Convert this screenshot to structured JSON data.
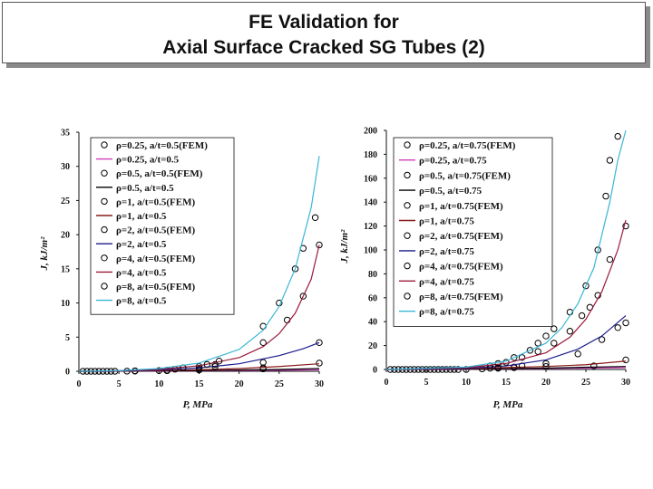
{
  "title": {
    "line1": "FE Validation for",
    "line2": "Axial Surface Cracked SG Tubes (2)"
  },
  "chart_data": [
    {
      "type": "line",
      "xlabel": "P, MPa",
      "ylabel": "J, kJ/m²",
      "xlim": [
        0,
        30
      ],
      "ylim": [
        0,
        35
      ],
      "xticks": [
        0,
        5,
        10,
        15,
        20,
        25,
        30
      ],
      "yticks": [
        0,
        5,
        10,
        15,
        20,
        25,
        30,
        35
      ],
      "grid": false,
      "legend_position": "top-left",
      "series": [
        {
          "name": "ρ=0.25, a/t=0.5(FEM)",
          "kind": "markers",
          "color": "#000000",
          "x": [
            7,
            11,
            15
          ],
          "y": [
            0.05,
            0.1,
            0.2
          ]
        },
        {
          "name": "ρ=0.25, a/t=0.5",
          "kind": "line",
          "color": "#d03ab8",
          "x": [
            0,
            5,
            10,
            15,
            20,
            25,
            30
          ],
          "y": [
            0,
            0.01,
            0.03,
            0.06,
            0.1,
            0.15,
            0.22
          ]
        },
        {
          "name": "ρ=0.5, a/t=0.5(FEM)",
          "kind": "markers",
          "color": "#000000",
          "x": [
            7,
            11,
            15,
            23
          ],
          "y": [
            0.05,
            0.1,
            0.2,
            0.35
          ]
        },
        {
          "name": "ρ=0.5, a/t=0.5",
          "kind": "line",
          "color": "#000000",
          "x": [
            0,
            5,
            10,
            15,
            20,
            25,
            30
          ],
          "y": [
            0,
            0.02,
            0.05,
            0.1,
            0.18,
            0.27,
            0.4
          ]
        },
        {
          "name": "ρ=1, a/t=0.5(FEM)",
          "kind": "markers",
          "color": "#000000",
          "x": [
            0.5,
            1,
            1.5,
            2,
            2.5,
            3,
            3.5,
            4,
            4.5,
            6,
            7,
            10,
            11,
            15,
            23,
            30
          ],
          "y": [
            0,
            0,
            0,
            0,
            0,
            0,
            0,
            0,
            0,
            0.02,
            0.05,
            0.1,
            0.12,
            0.25,
            0.5,
            1.2
          ]
        },
        {
          "name": "ρ=1, a/t=0.5",
          "kind": "line",
          "color": "#8b1a1a",
          "x": [
            0,
            5,
            10,
            15,
            20,
            25,
            30
          ],
          "y": [
            0,
            0.03,
            0.1,
            0.22,
            0.4,
            0.7,
            1.1
          ]
        },
        {
          "name": "ρ=2, a/t=0.5(FEM)",
          "kind": "markers",
          "color": "#000000",
          "x": [
            11,
            15,
            17,
            23,
            30
          ],
          "y": [
            0.15,
            0.45,
            0.7,
            1.3,
            4.2
          ]
        },
        {
          "name": "ρ=2, a/t=0.5",
          "kind": "line",
          "color": "#1a1a8b",
          "x": [
            0,
            5,
            10,
            15,
            20,
            25,
            28,
            30
          ],
          "y": [
            0,
            0.05,
            0.2,
            0.5,
            1.1,
            2.3,
            3.3,
            4.2
          ]
        },
        {
          "name": "ρ=4, a/t=0.5(FEM)",
          "kind": "markers",
          "color": "#000000",
          "x": [
            12,
            15,
            17,
            23,
            26,
            28,
            30
          ],
          "y": [
            0.3,
            0.7,
            1.0,
            4.2,
            7.5,
            11,
            18.5
          ]
        },
        {
          "name": "ρ=4, a/t=0.5",
          "kind": "line",
          "color": "#9a1a3a",
          "x": [
            0,
            5,
            10,
            15,
            20,
            23,
            25,
            27,
            29,
            30
          ],
          "y": [
            0,
            0.1,
            0.3,
            0.8,
            2.0,
            3.6,
            5.5,
            8.5,
            13.5,
            18.5
          ]
        },
        {
          "name": "ρ=8, a/t=0.5(FEM)",
          "kind": "markers",
          "color": "#000000",
          "x": [
            13,
            16,
            17.5,
            23,
            25,
            27,
            28,
            29.5
          ],
          "y": [
            0.5,
            1.0,
            1.5,
            6.6,
            10,
            15,
            18,
            22.5
          ]
        },
        {
          "name": "ρ=8, a/t=0.5",
          "kind": "line",
          "color": "#3ab6d6",
          "x": [
            0,
            5,
            10,
            15,
            20,
            23,
            25,
            27,
            29,
            30
          ],
          "y": [
            0,
            0.1,
            0.4,
            1.2,
            3.2,
            6.0,
            9.5,
            15,
            24,
            31.5
          ]
        }
      ]
    },
    {
      "type": "line",
      "xlabel": "P, MPa",
      "ylabel": "J, kJ/m²",
      "xlim": [
        0,
        30
      ],
      "ylim": [
        0,
        200
      ],
      "xticks": [
        0,
        5,
        10,
        15,
        20,
        25,
        30
      ],
      "yticks": [
        0,
        20,
        40,
        60,
        80,
        100,
        120,
        140,
        160,
        180,
        200
      ],
      "grid": false,
      "legend_position": "top-left",
      "series": [
        {
          "name": "ρ=0.25, a/t=0.75(FEM)",
          "kind": "markers",
          "color": "#000000",
          "x": [
            0.5,
            1,
            1.5,
            2,
            2.5,
            3,
            3.5,
            4,
            4.5,
            5,
            5.5,
            6,
            6.5,
            7,
            7.5,
            8,
            8.5,
            9,
            10
          ],
          "y": [
            0,
            0,
            0,
            0,
            0,
            0,
            0,
            0,
            0,
            0,
            0,
            0,
            0,
            0,
            0,
            0,
            0,
            0,
            0
          ]
        },
        {
          "name": "ρ=0.25, a/t=0.75",
          "kind": "line",
          "color": "#d03ab8",
          "x": [
            0,
            10,
            20,
            30
          ],
          "y": [
            0,
            0.3,
            0.8,
            1.5
          ]
        },
        {
          "name": "ρ=0.5, a/t=0.75(FEM)",
          "kind": "markers",
          "color": "#000000",
          "x": [
            12,
            14,
            16
          ],
          "y": [
            0.5,
            1.0,
            1.5
          ]
        },
        {
          "name": "ρ=0.5, a/t=0.75",
          "kind": "line",
          "color": "#000000",
          "x": [
            0,
            10,
            20,
            30
          ],
          "y": [
            0,
            0.5,
            1.2,
            2.5
          ]
        },
        {
          "name": "ρ=1, a/t=0.75(FEM)",
          "kind": "markers",
          "color": "#000000",
          "x": [
            13,
            16,
            20,
            26,
            30
          ],
          "y": [
            1.0,
            2.0,
            2.5,
            3.0,
            8.0
          ]
        },
        {
          "name": "ρ=1, a/t=0.75",
          "kind": "line",
          "color": "#8b1a1a",
          "x": [
            0,
            10,
            20,
            25,
            30
          ],
          "y": [
            0,
            0.8,
            2.5,
            4.0,
            7.0
          ]
        },
        {
          "name": "ρ=2, a/t=0.75(FEM)",
          "kind": "markers",
          "color": "#000000",
          "x": [
            14,
            17,
            20,
            24,
            27,
            29,
            30
          ],
          "y": [
            1.5,
            3.0,
            5.0,
            13,
            25,
            35,
            39
          ]
        },
        {
          "name": "ρ=2, a/t=0.75",
          "kind": "line",
          "color": "#1a1a8b",
          "x": [
            0,
            10,
            15,
            20,
            24,
            27,
            30
          ],
          "y": [
            0,
            1.0,
            3.0,
            8.0,
            17,
            28,
            45
          ]
        },
        {
          "name": "ρ=4, a/t=0.75(FEM)",
          "kind": "markers",
          "color": "#000000",
          "x": [
            13,
            15,
            17,
            19,
            21,
            23,
            24.5,
            25.5,
            26.5,
            28,
            30
          ],
          "y": [
            3,
            6,
            10,
            15,
            22,
            32,
            45,
            52,
            62,
            92,
            120
          ]
        },
        {
          "name": "ρ=4, a/t=0.75",
          "kind": "line",
          "color": "#9a1a3a",
          "x": [
            0,
            10,
            15,
            20,
            23,
            25,
            27,
            29,
            30
          ],
          "y": [
            0,
            1.5,
            5,
            14,
            27,
            42,
            65,
            100,
            125
          ]
        },
        {
          "name": "ρ=8, a/t=0.75(FEM)",
          "kind": "markers",
          "color": "#000000",
          "x": [
            14,
            16,
            18,
            19,
            20,
            21,
            23,
            25,
            26.5,
            27.5,
            28,
            29
          ],
          "y": [
            5,
            10,
            16,
            22,
            28,
            34,
            48,
            70,
            100,
            145,
            175,
            195
          ]
        },
        {
          "name": "ρ=8, a/t=0.75",
          "kind": "line",
          "color": "#3ab6d6",
          "x": [
            0,
            10,
            15,
            20,
            22,
            24,
            26,
            28,
            29,
            30
          ],
          "y": [
            0,
            2,
            7,
            22,
            35,
            55,
            85,
            140,
            175,
            205
          ]
        }
      ]
    }
  ]
}
